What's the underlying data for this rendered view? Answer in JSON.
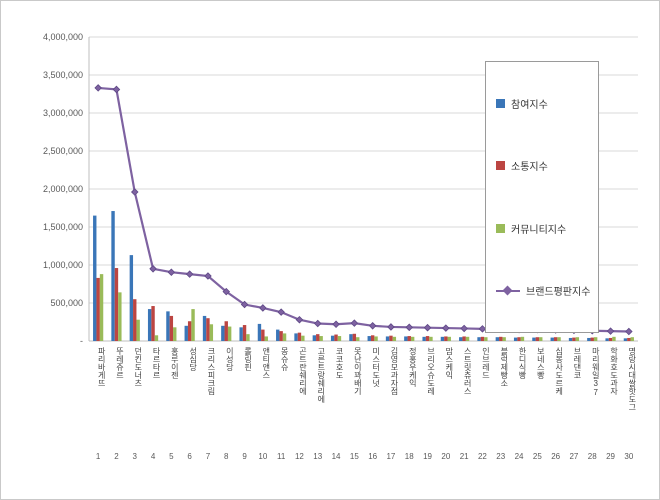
{
  "chart_data": {
    "type": "bar+line",
    "title": "",
    "grid": true,
    "legend_position": "right-overlay",
    "y_axis": {
      "min": 0,
      "max": 4000000,
      "step": 500000,
      "tick_labels": [
        "4,000,000",
        "3,500,000",
        "3,000,000",
        "2,500,000",
        "2,000,000",
        "1,500,000",
        "1,000,000",
        "500,000",
        "-"
      ]
    },
    "categories": [
      "파리바게뜨",
      "뚜레쥬르",
      "던킨도너츠",
      "타르타르",
      "홍루이젠",
      "성심당",
      "크리스피크림",
      "이성당",
      "롤링핀",
      "앤티앤스",
      "몽슈슈",
      "곤트란쉐리에",
      "고른트랑쉐리에",
      "코코호도",
      "못난이꽈배기",
      "미스터도넛",
      "김영모과자점",
      "정홍우케익",
      "브리오슈도레",
      "맘스케익",
      "스트릿츄러스",
      "인브레드",
      "블럭제빵소",
      "한디식빵",
      "보네스빵",
      "심봉사도르케",
      "브레댄코",
      "마리웨일37",
      "학화호도과자",
      "명랑시대쌀핫도그"
    ],
    "ranks": [
      "1",
      "2",
      "3",
      "4",
      "5",
      "6",
      "7",
      "8",
      "9",
      "10",
      "11",
      "12",
      "13",
      "14",
      "15",
      "16",
      "17",
      "18",
      "19",
      "20",
      "21",
      "22",
      "23",
      "24",
      "25",
      "26",
      "27",
      "28",
      "29",
      "30"
    ],
    "series": [
      {
        "name": "참여지수",
        "type": "bar",
        "color": "#3A76B8",
        "values": [
          1650000,
          1710000,
          1130000,
          420000,
          390000,
          200000,
          330000,
          200000,
          180000,
          225000,
          150000,
          100000,
          75000,
          70000,
          90000,
          65000,
          60000,
          60000,
          55000,
          55000,
          50000,
          50000,
          50000,
          45000,
          45000,
          45000,
          40000,
          40000,
          35000,
          35000
        ]
      },
      {
        "name": "소통지수",
        "type": "bar",
        "color": "#BC4542",
        "values": [
          830000,
          960000,
          550000,
          460000,
          330000,
          260000,
          300000,
          260000,
          210000,
          150000,
          130000,
          110000,
          90000,
          85000,
          95000,
          75000,
          70000,
          65000,
          65000,
          60000,
          60000,
          55000,
          55000,
          50000,
          50000,
          50000,
          45000,
          45000,
          40000,
          40000
        ]
      },
      {
        "name": "커뮤니티지수",
        "type": "bar",
        "color": "#9ABB59",
        "values": [
          880000,
          640000,
          280000,
          75000,
          180000,
          420000,
          220000,
          190000,
          90000,
          60000,
          100000,
          70000,
          65000,
          65000,
          50000,
          60000,
          55000,
          55000,
          55000,
          55000,
          55000,
          50000,
          50000,
          55000,
          50000,
          50000,
          50000,
          50000,
          55000,
          50000
        ]
      },
      {
        "name": "브랜드평판지수",
        "type": "line",
        "color": "#7E62A1",
        "marker_stroke": "#5E4886",
        "values": [
          3330000,
          3310000,
          1960000,
          950000,
          905000,
          880000,
          855000,
          650000,
          480000,
          435000,
          380000,
          280000,
          230000,
          220000,
          235000,
          200000,
          185000,
          180000,
          175000,
          170000,
          165000,
          160000,
          155000,
          150000,
          150000,
          145000,
          140000,
          135000,
          130000,
          125000
        ]
      }
    ]
  }
}
